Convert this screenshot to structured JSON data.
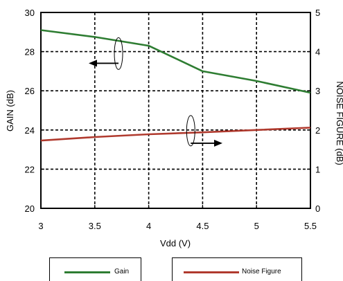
{
  "chart_data": {
    "type": "line",
    "xlabel": "Vdd (V)",
    "ylabel_left": "GAIN (dB)",
    "ylabel_right": "NOISE FIGURE (dB)",
    "x": [
      3,
      3.5,
      4,
      4.5,
      5,
      5.5
    ],
    "xticks": [
      "3",
      "3.5",
      "4",
      "4.5",
      "5",
      "5.5"
    ],
    "yticks_left": [
      "20",
      "22",
      "24",
      "26",
      "28",
      "30"
    ],
    "yticks_right": [
      "0",
      "1",
      "2",
      "3",
      "4",
      "5"
    ],
    "xlim": [
      3,
      5.5
    ],
    "ylim_left": [
      20,
      30
    ],
    "ylim_right": [
      0,
      5
    ],
    "grid": true,
    "grid_style": "dashed",
    "series": [
      {
        "name": "Gain",
        "axis": "left",
        "color": "#2e7d32",
        "values": [
          29.1,
          28.75,
          28.3,
          27.0,
          26.5,
          25.9
        ]
      },
      {
        "name": "Noise Figure",
        "axis": "right",
        "color": "#b03a2e",
        "values": [
          1.73,
          1.82,
          1.89,
          1.94,
          2.0,
          2.06
        ]
      }
    ],
    "legend": {
      "placement": "bottom"
    }
  }
}
